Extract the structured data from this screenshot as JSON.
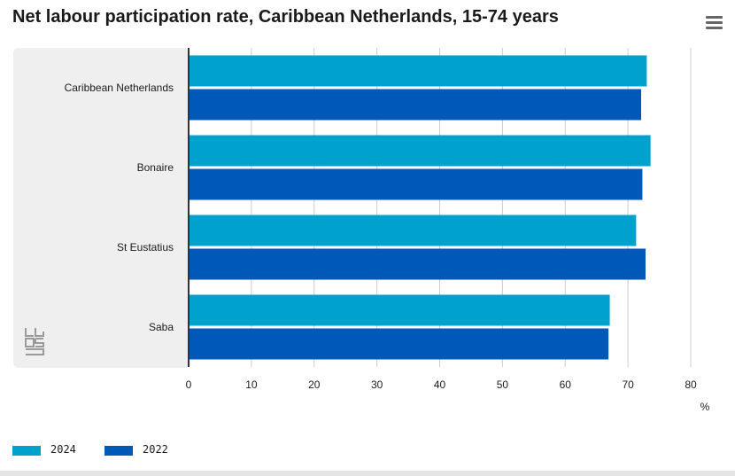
{
  "title": "Net labour participation rate, Caribbean Netherlands, 15-74 years",
  "menu_icon": "hamburger-menu-icon",
  "logo_icon": "cbs-logo-icon",
  "colors": {
    "series_2024": "#00a1cd",
    "series_2022": "#0058b8",
    "panel": "#efefef",
    "grid": "#cccccc",
    "axis": "#333333"
  },
  "chart_data": {
    "type": "bar",
    "orientation": "horizontal",
    "categories": [
      "Caribbean Netherlands",
      "Bonaire",
      "St Eustatius",
      "Saba"
    ],
    "series": [
      {
        "name": "2024",
        "values": [
          73.0,
          73.6,
          71.3,
          67.1
        ]
      },
      {
        "name": "2022",
        "values": [
          72.1,
          72.3,
          72.8,
          66.9
        ]
      }
    ],
    "xlim": [
      0,
      80
    ],
    "xticks": [
      "0",
      "10",
      "20",
      "30",
      "40",
      "50",
      "60",
      "70",
      "80"
    ],
    "xunit": "%",
    "grid": true,
    "legend_position": "bottom-left"
  },
  "legend": [
    {
      "label": "2024"
    },
    {
      "label": "2022"
    }
  ]
}
